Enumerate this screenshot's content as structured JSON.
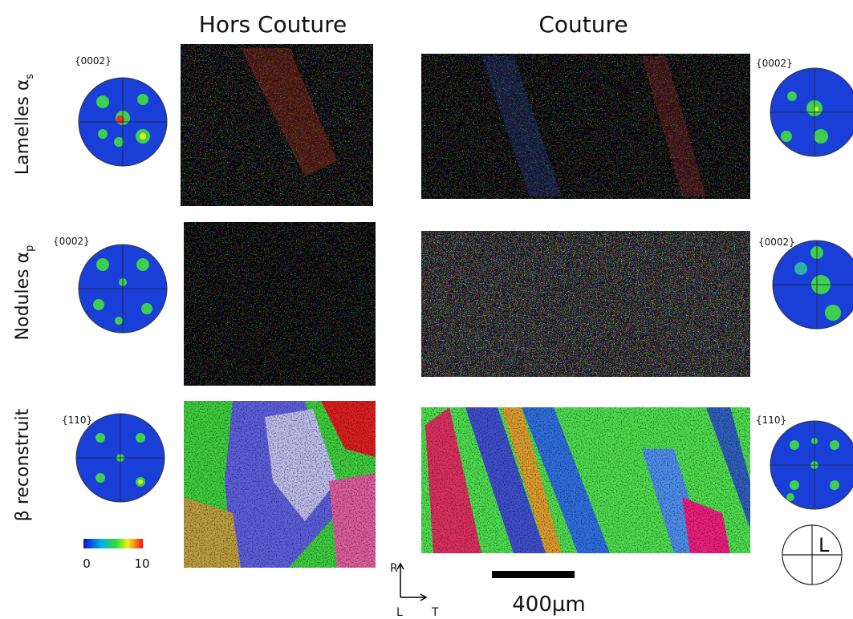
{
  "columns": [
    "Hors Couture",
    "Couture"
  ],
  "rows": [
    {
      "label": "Lamelles α",
      "subscript": "s",
      "pole_left": "{0002}",
      "pole_right": "{0002}"
    },
    {
      "label": "Nodules α",
      "subscript": "p",
      "pole_left": "{0002}",
      "pole_right": "{0002}"
    },
    {
      "label": "β reconstruit",
      "pole_left": "{110}",
      "pole_right": "{110}"
    }
  ],
  "colorbar": {
    "min": 0,
    "max": 10
  },
  "axes": {
    "up": "R",
    "out": "L",
    "right": "T"
  },
  "scale_bar": "400µm",
  "reference": "L"
}
